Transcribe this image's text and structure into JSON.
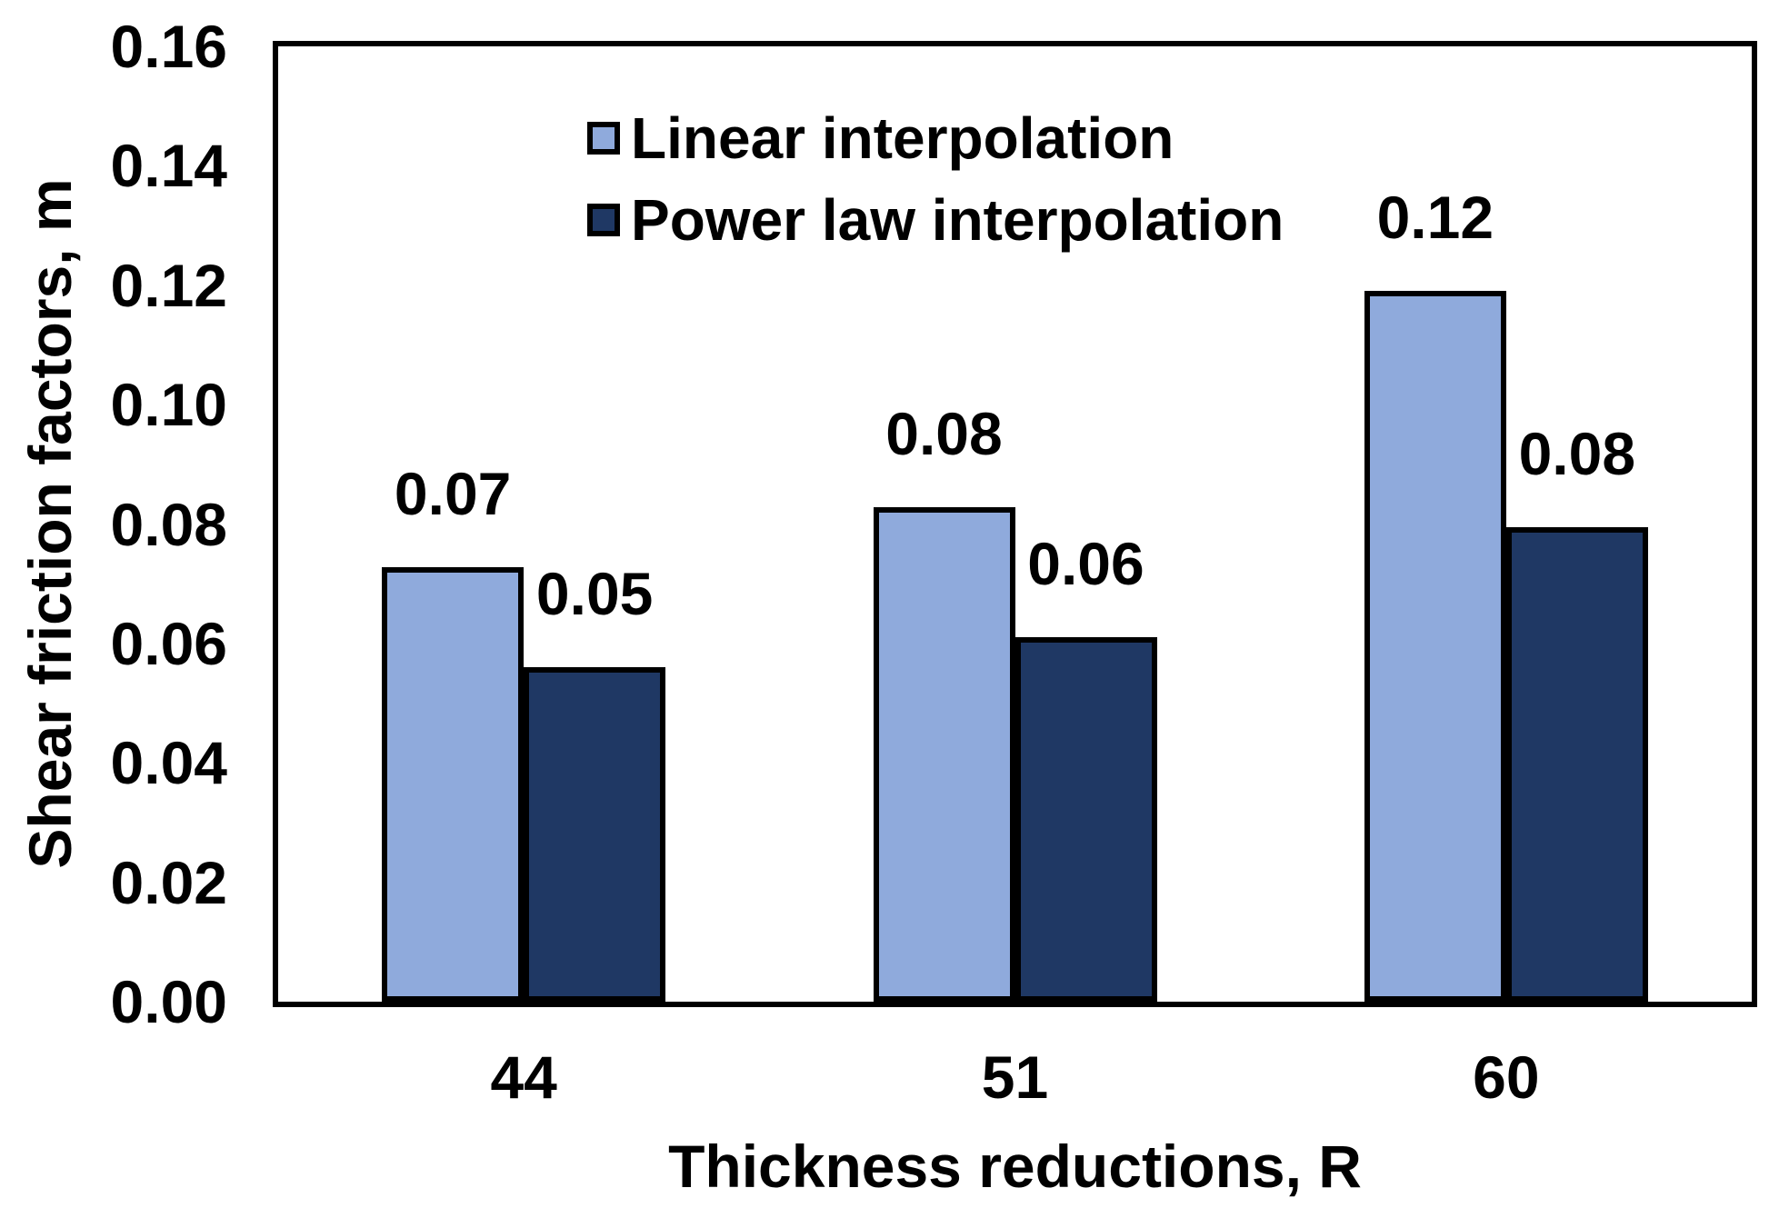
{
  "chart_data": {
    "type": "bar",
    "title": "",
    "xlabel": "Thickness reductions, R",
    "ylabel": "Shear friction factors, m",
    "categories": [
      "44",
      "51",
      "60"
    ],
    "series": [
      {
        "name": "Linear interpolation",
        "color": "#8FAADC",
        "values": [
          0.07,
          0.08,
          0.12
        ],
        "data_labels": [
          "0.07",
          "0.08",
          "0.12"
        ],
        "bar_heights_estimated": [
          0.0727,
          0.0828,
          0.119
        ]
      },
      {
        "name": "Power law interpolation",
        "color": "#1F3864",
        "values": [
          0.05,
          0.06,
          0.08
        ],
        "data_labels": [
          "0.05",
          "0.06",
          "0.08"
        ],
        "bar_heights_estimated": [
          0.056,
          0.061,
          0.0795
        ]
      }
    ],
    "ylim": [
      0,
      0.16
    ],
    "ytick_step": 0.02,
    "yticks": [
      "0.16",
      "0.14",
      "0.12",
      "0.10",
      "0.08",
      "0.06",
      "0.04",
      "0.02",
      "0.00"
    ],
    "grid": false,
    "legend_position": "top-left-inside",
    "bar_outline_color": "#000000",
    "text_color": "#000000",
    "background_color": "#FFFFFF"
  }
}
